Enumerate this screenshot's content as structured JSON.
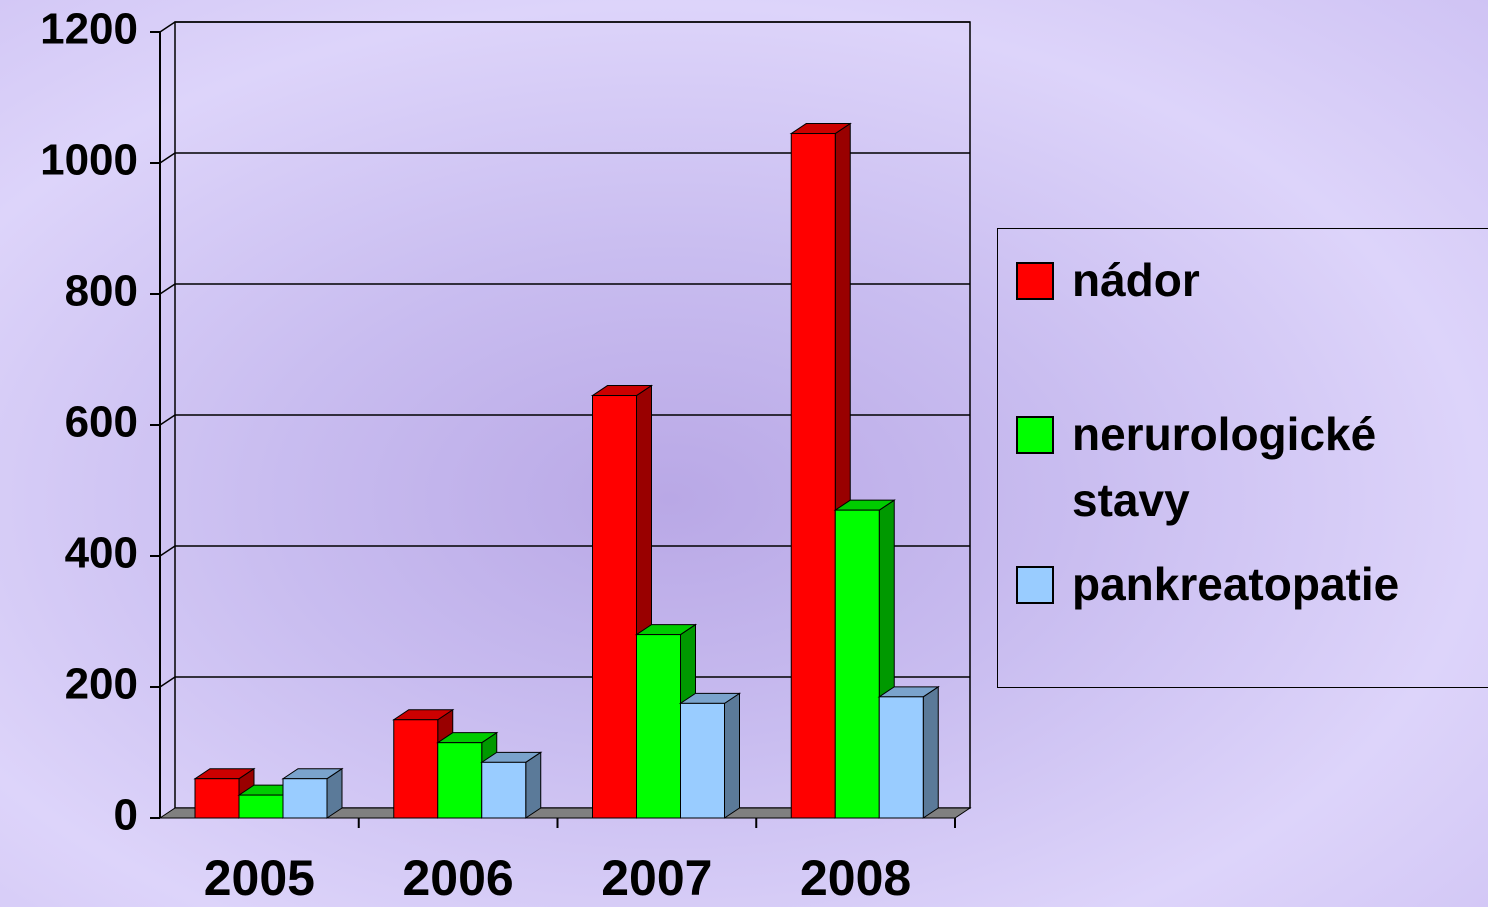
{
  "chart_data": {
    "type": "bar3d",
    "categories": [
      "2005",
      "2006",
      "2007",
      "2008"
    ],
    "series": [
      {
        "name": "nádor",
        "color": "#ff0000",
        "values": [
          60,
          150,
          645,
          1045
        ]
      },
      {
        "name": "nerurologické stavy",
        "color": "#00ff00",
        "values": [
          35,
          115,
          280,
          470
        ]
      },
      {
        "name": "pankreatopatie",
        "color": "#99ccff",
        "values": [
          60,
          85,
          175,
          185
        ]
      }
    ],
    "ylim": [
      0,
      1200
    ],
    "yticks": [
      0,
      200,
      400,
      600,
      800,
      1000,
      1200
    ],
    "grid": true,
    "legend": "right"
  }
}
